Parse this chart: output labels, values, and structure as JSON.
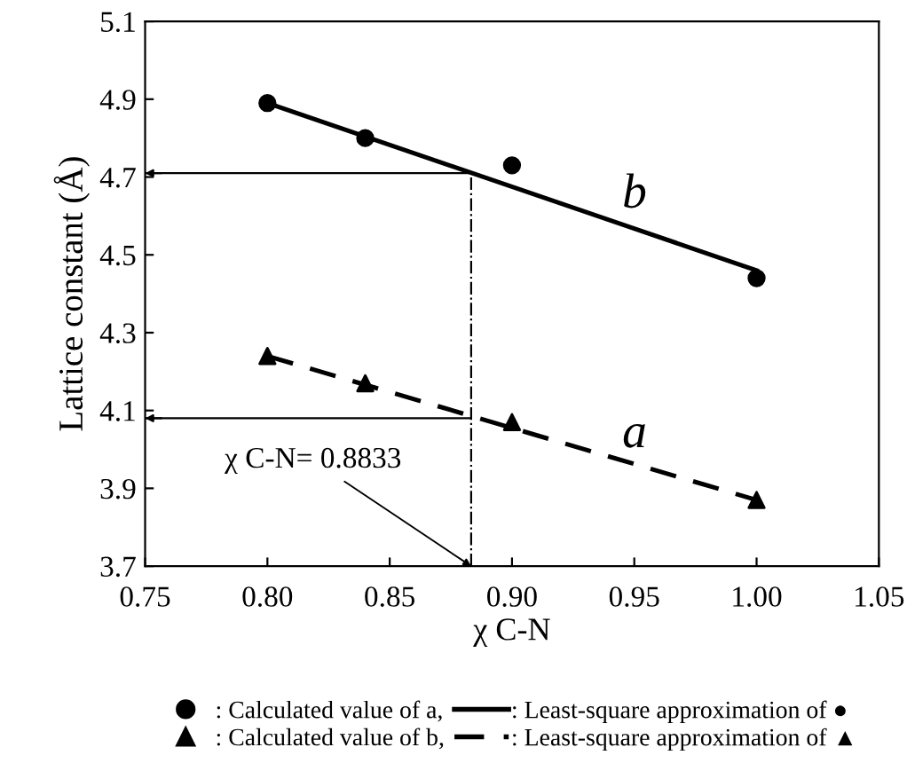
{
  "chart_data": {
    "type": "scatter",
    "xlabel": "χ C-N",
    "ylabel": "Lattice constant (Å)",
    "xlim": [
      0.75,
      1.05
    ],
    "xticks": [
      {
        "value": 0.75,
        "label": "0.75"
      },
      {
        "value": 0.8,
        "label": "0.80"
      },
      {
        "value": 0.85,
        "label": "0.85"
      },
      {
        "value": 0.9,
        "label": "0.90"
      },
      {
        "value": 0.95,
        "label": "0.95"
      },
      {
        "value": 1.0,
        "label": "1.00"
      },
      {
        "value": 1.05,
        "label": "1.05"
      }
    ],
    "ylim": [
      3.7,
      5.1
    ],
    "yticks": [
      3.7,
      3.9,
      4.1,
      4.3,
      4.5,
      4.7,
      4.9,
      5.1
    ],
    "grid": false,
    "legend": "bottom",
    "series": [
      {
        "name": ": Calculated value of a,",
        "marker": "circle",
        "color": "#000000",
        "x": [
          0.8,
          0.84,
          0.9,
          1.0
        ],
        "values": [
          4.89,
          4.8,
          4.73,
          4.44
        ]
      },
      {
        "name": ": Calculated value of b,",
        "marker": "triangle",
        "color": "#000000",
        "x": [
          0.8,
          0.84,
          0.9,
          1.0
        ],
        "values": [
          4.24,
          4.17,
          4.07,
          3.87
        ]
      },
      {
        "name": ": Least-square approximation of ●",
        "type": "line",
        "line_style": "solid",
        "color": "#000000",
        "x": [
          0.8,
          1.0
        ],
        "values": [
          4.89,
          4.46
        ]
      },
      {
        "name": ": Least-square approximation of ▲",
        "type": "line",
        "line_style": "dashed",
        "color": "#000000",
        "x": [
          0.8,
          1.0
        ],
        "values": [
          4.24,
          3.87
        ]
      }
    ],
    "ref_lines": [
      {
        "axis": "x",
        "value": 0.8833,
        "line_style": "dashdot",
        "color": "#000000"
      },
      {
        "axis": "y",
        "value": 4.71,
        "color": "#000000"
      },
      {
        "axis": "y",
        "value": 4.08,
        "color": "#000000"
      }
    ],
    "annotations": [
      {
        "text": "χ C-N= 0.8833",
        "x": 0.8833,
        "y": 3.7
      },
      "b",
      "a"
    ]
  }
}
